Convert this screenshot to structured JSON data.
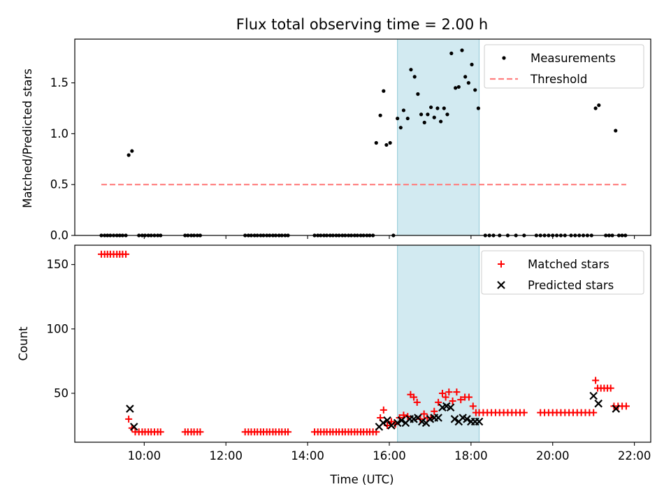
{
  "figure": {
    "title": "Flux total observing time = 2.00 h"
  },
  "colors": {
    "measurements": "#000000",
    "threshold": "#ff7f7f",
    "matched": "#ff0000",
    "predicted": "#000000",
    "highlight": "#add8e6"
  },
  "chart_data": [
    {
      "type": "scatter",
      "ylabel": "Matched/Predicted stars",
      "xlim": [
        8.3,
        22.4
      ],
      "ylim": [
        0.0,
        1.93
      ],
      "y_ticks": [
        0.0,
        0.5,
        1.0,
        1.5
      ],
      "y_tick_labels": [
        "0.0",
        "0.5",
        "1.0",
        "1.5"
      ],
      "highlight_span": [
        16.2,
        18.2
      ],
      "legend": {
        "position": "top-right",
        "entries": [
          "Measurements",
          "Threshold"
        ]
      },
      "series": [
        {
          "name": "Measurements",
          "marker": "dot",
          "x": [
            8.95,
            9.03,
            9.1,
            9.17,
            9.25,
            9.33,
            9.4,
            9.47,
            9.55,
            9.62,
            9.7,
            9.87,
            9.95,
            10.02,
            10.1,
            10.17,
            10.25,
            10.33,
            10.4,
            11.0,
            11.07,
            11.15,
            11.22,
            11.3,
            11.37,
            12.47,
            12.55,
            12.62,
            12.7,
            12.77,
            12.85,
            12.92,
            13.0,
            13.07,
            13.15,
            13.22,
            13.3,
            13.37,
            13.45,
            13.52,
            14.17,
            14.25,
            14.32,
            14.4,
            14.47,
            14.55,
            14.62,
            14.7,
            14.77,
            14.85,
            14.92,
            15.0,
            15.07,
            15.15,
            15.22,
            15.3,
            15.37,
            15.45,
            15.52,
            15.6,
            15.68,
            15.78,
            15.86,
            15.93,
            16.02,
            16.1,
            16.2,
            16.28,
            16.35,
            16.45,
            16.53,
            16.62,
            16.7,
            16.78,
            16.86,
            16.94,
            17.02,
            17.1,
            17.18,
            17.26,
            17.34,
            17.42,
            17.52,
            17.62,
            17.7,
            17.78,
            17.86,
            17.94,
            18.02,
            18.1,
            18.18,
            18.35,
            18.45,
            18.55,
            18.7,
            18.9,
            19.1,
            19.3,
            19.6,
            19.7,
            19.8,
            19.9,
            20.0,
            20.1,
            20.2,
            20.3,
            20.45,
            20.55,
            20.65,
            20.75,
            20.85,
            20.95,
            21.05,
            21.13,
            21.3,
            21.38,
            21.46,
            21.54,
            21.62,
            21.7,
            21.78
          ],
          "y": [
            0,
            0,
            0,
            0,
            0,
            0,
            0,
            0,
            0,
            0.79,
            0.83,
            0,
            0,
            0,
            0,
            0,
            0,
            0,
            0,
            0,
            0,
            0,
            0,
            0,
            0,
            0,
            0,
            0,
            0,
            0,
            0,
            0,
            0,
            0,
            0,
            0,
            0,
            0,
            0,
            0,
            0,
            0,
            0,
            0,
            0,
            0,
            0,
            0,
            0,
            0,
            0,
            0,
            0,
            0,
            0,
            0,
            0,
            0,
            0,
            0,
            0.91,
            1.18,
            1.42,
            0.89,
            0.91,
            0,
            1.15,
            1.06,
            1.23,
            1.15,
            1.63,
            1.56,
            1.39,
            1.19,
            1.11,
            1.19,
            1.26,
            1.16,
            1.25,
            1.12,
            1.25,
            1.19,
            1.79,
            1.45,
            1.46,
            1.82,
            1.56,
            1.5,
            1.68,
            1.43,
            1.25,
            0,
            0,
            0,
            0,
            0,
            0,
            0,
            0,
            0,
            0,
            0,
            0,
            0,
            0,
            0,
            0,
            0,
            0,
            0,
            0,
            0,
            1.25,
            1.28,
            0,
            0,
            0,
            1.03,
            0,
            0,
            0
          ]
        },
        {
          "name": "Threshold",
          "style": "dashed",
          "x": [
            8.95,
            21.8
          ],
          "y": [
            0.5,
            0.5
          ]
        }
      ]
    },
    {
      "type": "scatter",
      "xlabel": "Time (UTC)",
      "ylabel": "Count",
      "xlim": [
        8.3,
        22.4
      ],
      "ylim": [
        12,
        165
      ],
      "x_ticks": [
        10,
        12,
        14,
        16,
        18,
        20,
        22
      ],
      "x_tick_labels": [
        "10:00",
        "12:00",
        "14:00",
        "16:00",
        "18:00",
        "20:00",
        "22:00"
      ],
      "y_ticks": [
        50,
        100,
        150
      ],
      "y_tick_labels": [
        "50",
        "100",
        "150"
      ],
      "highlight_span": [
        16.2,
        18.2
      ],
      "legend": {
        "position": "top-right",
        "entries": [
          "Matched stars",
          "Predicted stars"
        ]
      },
      "series": [
        {
          "name": "Matched stars",
          "marker": "plus",
          "x": [
            8.95,
            9.03,
            9.1,
            9.17,
            9.25,
            9.33,
            9.4,
            9.47,
            9.55,
            9.62,
            9.7,
            9.78,
            9.87,
            9.95,
            10.02,
            10.1,
            10.17,
            10.25,
            10.33,
            10.4,
            11.0,
            11.07,
            11.15,
            11.22,
            11.3,
            11.37,
            12.47,
            12.55,
            12.62,
            12.7,
            12.77,
            12.85,
            12.92,
            13.0,
            13.07,
            13.15,
            13.22,
            13.3,
            13.37,
            13.45,
            13.52,
            14.17,
            14.25,
            14.32,
            14.4,
            14.47,
            14.55,
            14.62,
            14.7,
            14.77,
            14.85,
            14.92,
            15.0,
            15.07,
            15.15,
            15.22,
            15.3,
            15.37,
            15.45,
            15.52,
            15.6,
            15.68,
            15.78,
            15.86,
            15.95,
            16.05,
            16.15,
            16.25,
            16.35,
            16.45,
            16.52,
            16.6,
            16.68,
            16.76,
            16.85,
            16.93,
            17.02,
            17.1,
            17.2,
            17.3,
            17.38,
            17.46,
            17.55,
            17.65,
            17.75,
            17.85,
            17.95,
            18.05,
            18.12,
            18.2,
            18.3,
            18.4,
            18.5,
            18.6,
            18.7,
            18.8,
            18.9,
            19.0,
            19.1,
            19.2,
            19.3,
            19.7,
            19.8,
            19.9,
            20.0,
            20.1,
            20.2,
            20.3,
            20.4,
            20.5,
            20.6,
            20.7,
            20.8,
            20.9,
            21.0,
            21.05,
            21.1,
            21.18,
            21.26,
            21.34,
            21.42,
            21.5,
            21.6,
            21.7,
            21.8
          ],
          "y": [
            158,
            158,
            158,
            158,
            158,
            158,
            158,
            158,
            158,
            30,
            23,
            20,
            20,
            20,
            20,
            20,
            20,
            20,
            20,
            20,
            20,
            20,
            20,
            20,
            20,
            20,
            20,
            20,
            20,
            20,
            20,
            20,
            20,
            20,
            20,
            20,
            20,
            20,
            20,
            20,
            20,
            20,
            20,
            20,
            20,
            20,
            20,
            20,
            20,
            20,
            20,
            20,
            20,
            20,
            20,
            20,
            20,
            20,
            20,
            20,
            20,
            20,
            31,
            37,
            25,
            28,
            26,
            31,
            33,
            32,
            49,
            47,
            43,
            30,
            34,
            31,
            31,
            36,
            43,
            50,
            47,
            51,
            44,
            51,
            45,
            47,
            47,
            40,
            35,
            35,
            35,
            35,
            35,
            35,
            35,
            35,
            35,
            35,
            35,
            35,
            35,
            35,
            35,
            35,
            35,
            35,
            35,
            35,
            35,
            35,
            35,
            35,
            35,
            35,
            35,
            60,
            54,
            54,
            54,
            54,
            54,
            40,
            40,
            40,
            40
          ]
        },
        {
          "name": "Predicted stars",
          "marker": "x",
          "x": [
            9.65,
            9.75,
            15.75,
            15.85,
            15.95,
            16.05,
            16.2,
            16.3,
            16.4,
            16.5,
            16.6,
            16.7,
            16.8,
            16.9,
            17.0,
            17.1,
            17.2,
            17.3,
            17.4,
            17.5,
            17.6,
            17.7,
            17.8,
            17.9,
            18.0,
            18.1,
            18.2,
            21.0,
            21.12,
            21.55
          ],
          "y": [
            38,
            24,
            24,
            27,
            29,
            25,
            27,
            29,
            27,
            30,
            30,
            31,
            28,
            27,
            30,
            31,
            31,
            39,
            40,
            39,
            30,
            28,
            31,
            30,
            28,
            28,
            28,
            48,
            42,
            38
          ]
        }
      ]
    }
  ]
}
